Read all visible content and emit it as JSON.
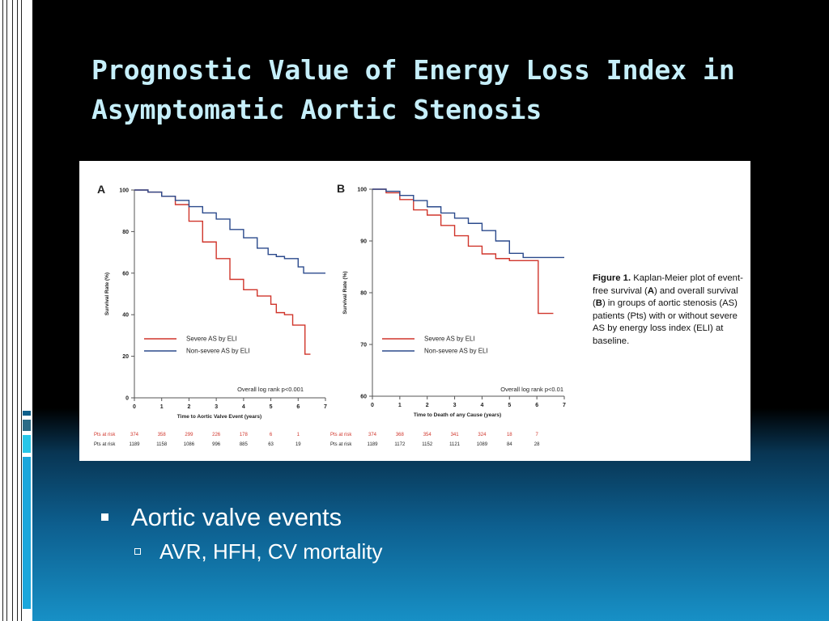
{
  "slide": {
    "title": "Prognostic Value of Energy Loss Index in Asymptomatic Aortic Stenosis",
    "bullets": [
      {
        "text": "Aortic valve events",
        "sub": [
          "AVR, HFH, CV mortality"
        ]
      }
    ]
  },
  "figure": {
    "caption_label": "Figure 1.",
    "caption_parts": [
      "Kaplan-Meier plot of event-free survival (",
      "A",
      ") and overall survival (",
      "B",
      ") in groups of aortic stenosis (AS) patients (Pts) with or without severe AS by energy loss index (ELI) at baseline."
    ],
    "colors": {
      "severe": "#d0352b",
      "nonsevere": "#2b4a8c"
    }
  },
  "chart_data": [
    {
      "type": "line",
      "panel_label": "A",
      "xlabel": "Time to Aortic Valve Event (years)",
      "ylabel": "Survival Rate (%)",
      "xlim": [
        0,
        7
      ],
      "ylim": [
        0,
        100
      ],
      "x_ticks": [
        0,
        1,
        2,
        3,
        4,
        5,
        6,
        7
      ],
      "y_ticks": [
        0,
        20,
        40,
        60,
        80,
        100
      ],
      "legend": "bottom-left",
      "annotation": "Overall log rank p<0.001",
      "series": [
        {
          "name": "Severe AS by ELI",
          "color": "#d0352b",
          "points": [
            [
              0,
              100
            ],
            [
              0.5,
              99
            ],
            [
              1,
              97
            ],
            [
              1.5,
              93
            ],
            [
              2,
              85
            ],
            [
              2.5,
              75
            ],
            [
              3,
              67
            ],
            [
              3.5,
              57
            ],
            [
              4,
              52
            ],
            [
              4.5,
              49
            ],
            [
              5,
              45
            ],
            [
              5.2,
              41
            ],
            [
              5.5,
              40
            ],
            [
              5.8,
              35
            ],
            [
              6.2,
              35
            ],
            [
              6.25,
              21
            ],
            [
              6.45,
              21
            ]
          ]
        },
        {
          "name": "Non-severe AS by ELI",
          "color": "#2b4a8c",
          "points": [
            [
              0,
              100
            ],
            [
              0.5,
              99
            ],
            [
              1,
              97
            ],
            [
              1.5,
              95
            ],
            [
              2,
              92
            ],
            [
              2.5,
              89
            ],
            [
              3,
              86
            ],
            [
              3.5,
              81
            ],
            [
              4,
              77
            ],
            [
              4.5,
              72
            ],
            [
              4.9,
              69
            ],
            [
              5.2,
              68
            ],
            [
              5.5,
              67
            ],
            [
              5.9,
              67
            ],
            [
              6,
              63
            ],
            [
              6.2,
              60
            ],
            [
              7,
              60
            ]
          ]
        }
      ],
      "at_risk": {
        "label": "Pts at risk",
        "rows": [
          {
            "series": "Severe AS by ELI",
            "values": [
              "374",
              "358",
              "299",
              "226",
              "178",
              "6",
              "1"
            ]
          },
          {
            "series": "Non-severe AS by ELI",
            "values": [
              "1189",
              "1158",
              "1086",
              "996",
              "885",
              "63",
              "19"
            ]
          }
        ]
      }
    },
    {
      "type": "line",
      "panel_label": "B",
      "xlabel": "Time to Death of any Cause (years)",
      "ylabel": "Survival Rate (%)",
      "xlim": [
        0,
        7
      ],
      "ylim": [
        60,
        100
      ],
      "x_ticks": [
        0,
        1,
        2,
        3,
        4,
        5,
        6,
        7
      ],
      "y_ticks": [
        60,
        70,
        80,
        90,
        100
      ],
      "legend": "bottom-left",
      "annotation": "Overall log rank p<0.01",
      "series": [
        {
          "name": "Severe AS by ELI",
          "color": "#d0352b",
          "points": [
            [
              0,
              100
            ],
            [
              0.5,
              99.3
            ],
            [
              1,
              98
            ],
            [
              1.5,
              96
            ],
            [
              2,
              95
            ],
            [
              2.5,
              93
            ],
            [
              3,
              91
            ],
            [
              3.5,
              89
            ],
            [
              4,
              87.5
            ],
            [
              4.5,
              86.6
            ],
            [
              5,
              86.2
            ],
            [
              6,
              86.2
            ],
            [
              6.05,
              76
            ],
            [
              6.6,
              76
            ]
          ]
        },
        {
          "name": "Non-severe AS by ELI",
          "color": "#2b4a8c",
          "points": [
            [
              0,
              100
            ],
            [
              0.5,
              99.6
            ],
            [
              1,
              98.8
            ],
            [
              1.5,
              97.8
            ],
            [
              2,
              96.6
            ],
            [
              2.5,
              95.4
            ],
            [
              3,
              94.4
            ],
            [
              3.5,
              93.4
            ],
            [
              4,
              92
            ],
            [
              4.5,
              90
            ],
            [
              5,
              87.6
            ],
            [
              5.5,
              86.8
            ],
            [
              7,
              86.8
            ]
          ]
        }
      ],
      "at_risk": {
        "label": "Pts at risk",
        "rows": [
          {
            "series": "Severe AS by ELI",
            "values": [
              "374",
              "368",
              "354",
              "341",
              "324",
              "18",
              "7"
            ]
          },
          {
            "series": "Non-severe AS by ELI",
            "values": [
              "1189",
              "1172",
              "1152",
              "1121",
              "1089",
              "84",
              "28"
            ]
          }
        ]
      }
    }
  ]
}
